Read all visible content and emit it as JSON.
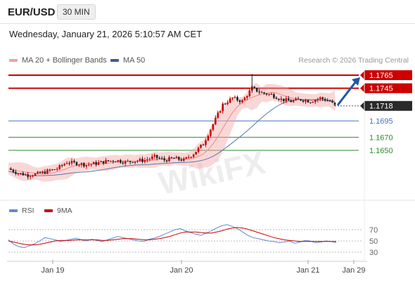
{
  "header": {
    "pair": "EUR/USD",
    "timeframe": "30 MIN",
    "datetime": "Wednesday, January 21, 2026 5:10:57 AM CET"
  },
  "legend": {
    "ma20_label": "MA 20 + Bollinger Bands",
    "ma50_label": "MA 50",
    "attribution": "Research © 2026 Trading Central"
  },
  "rsi_legend": {
    "rsi_label": "RSI",
    "ma_label": "9MA"
  },
  "colors": {
    "resistance": "#cc0000",
    "current": "#333333",
    "pivot": "#4472c4",
    "support": "#2e8b2e",
    "candle_up": "#cc0000",
    "candle_down": "#222222",
    "ma20": "#f2a0a0",
    "ma50": "#5577aa",
    "rsi": "#6688cc",
    "rsi_ma": "#cc0000",
    "arrow": "#2255aa"
  },
  "chart_data": [
    {
      "type": "candlestick",
      "title": "EUR/USD 30 MIN",
      "ylim": [
        1.16,
        1.1775
      ],
      "x_ticks": [
        "Jan 19",
        "Jan 20",
        "Jan 21",
        "Jan 29"
      ],
      "levels": [
        {
          "value": 1.1765,
          "label": "1.1765",
          "kind": "resistance"
        },
        {
          "value": 1.1745,
          "label": "1.1745",
          "kind": "resistance"
        },
        {
          "value": 1.1718,
          "label": "1.1718",
          "kind": "current"
        },
        {
          "value": 1.1695,
          "label": "1.1695",
          "kind": "pivot"
        },
        {
          "value": 1.167,
          "label": "1.1670",
          "kind": "support"
        },
        {
          "value": 1.165,
          "label": "1.1650",
          "kind": "support"
        }
      ],
      "series": [
        {
          "name": "MA 20 + Bollinger Bands"
        },
        {
          "name": "MA 50"
        }
      ],
      "price_path": [
        [
          0,
          1.1622
        ],
        [
          4,
          1.1615
        ],
        [
          8,
          1.1612
        ],
        [
          12,
          1.1614
        ],
        [
          16,
          1.1618
        ],
        [
          20,
          1.1622
        ],
        [
          24,
          1.1632
        ],
        [
          28,
          1.163
        ],
        [
          32,
          1.1628
        ],
        [
          36,
          1.163
        ],
        [
          40,
          1.1633
        ],
        [
          44,
          1.1635
        ],
        [
          48,
          1.1632
        ],
        [
          52,
          1.1634
        ],
        [
          56,
          1.1635
        ],
        [
          60,
          1.164
        ],
        [
          64,
          1.1635
        ],
        [
          68,
          1.1638
        ],
        [
          72,
          1.1635
        ],
        [
          76,
          1.1645
        ],
        [
          80,
          1.166
        ],
        [
          84,
          1.169
        ],
        [
          88,
          1.172
        ],
        [
          92,
          1.173
        ],
        [
          96,
          1.1725
        ],
        [
          100,
          1.1745
        ],
        [
          104,
          1.1738
        ],
        [
          108,
          1.1735
        ],
        [
          112,
          1.1728
        ],
        [
          116,
          1.1725
        ],
        [
          120,
          1.1728
        ],
        [
          124,
          1.1725
        ],
        [
          128,
          1.173
        ],
        [
          132,
          1.1725
        ],
        [
          134,
          1.1718
        ]
      ],
      "high_spike": 1.1767
    },
    {
      "type": "line",
      "title": "RSI",
      "ylim": [
        20,
        85
      ],
      "y_ticks": [
        70,
        50,
        30
      ],
      "series": [
        {
          "name": "RSI",
          "values": [
            52,
            44,
            40,
            38,
            41,
            45,
            50,
            56,
            54,
            52,
            49,
            51,
            53,
            55,
            52,
            50,
            53,
            51,
            49,
            52,
            55,
            58,
            56,
            54,
            52,
            50,
            49,
            53,
            55,
            58,
            62,
            66,
            70,
            72,
            68,
            65,
            62,
            60,
            64,
            68,
            73,
            77,
            79,
            76,
            72,
            66,
            60,
            56,
            54,
            52,
            50,
            49,
            47,
            48,
            50,
            46,
            48,
            51,
            50,
            47,
            48,
            50,
            49,
            47
          ]
        },
        {
          "name": "9MA",
          "values": [
            50,
            48,
            46,
            44,
            43,
            43,
            44,
            46,
            48,
            50,
            51,
            51,
            51,
            52,
            52,
            52,
            52,
            52,
            51,
            51,
            52,
            53,
            54,
            54,
            54,
            53,
            52,
            52,
            53,
            54,
            56,
            58,
            61,
            64,
            66,
            66,
            66,
            65,
            64,
            64,
            66,
            68,
            71,
            73,
            74,
            73,
            71,
            68,
            65,
            62,
            59,
            56,
            54,
            52,
            51,
            50,
            49,
            49,
            49,
            49,
            49,
            49,
            49,
            49
          ]
        }
      ]
    }
  ]
}
